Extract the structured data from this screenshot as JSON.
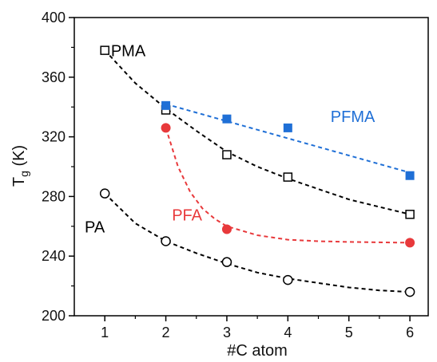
{
  "chart_data": {
    "type": "scatter",
    "xlabel": "#C atom",
    "ylabel_main": "T",
    "ylabel_sub": "g",
    "ylabel_unit": " (K)",
    "xlim": [
      0.5,
      6.3
    ],
    "ylim": [
      200,
      400
    ],
    "xticks": [
      1,
      2,
      3,
      4,
      5,
      6
    ],
    "yticks": [
      200,
      240,
      280,
      320,
      360,
      400
    ],
    "grid": false,
    "series": [
      {
        "name": "PMA",
        "marker": "open-square",
        "color": "#000000",
        "x": [
          1,
          2,
          3,
          4,
          6
        ],
        "y": [
          378,
          338,
          308,
          293,
          268
        ],
        "fit": [
          [
            1,
            378
          ],
          [
            1.5,
            356
          ],
          [
            2,
            339
          ],
          [
            2.5,
            324
          ],
          [
            3,
            310
          ],
          [
            3.5,
            300
          ],
          [
            4,
            292
          ],
          [
            4.5,
            285
          ],
          [
            5,
            278
          ],
          [
            5.5,
            273
          ],
          [
            6,
            268
          ]
        ]
      },
      {
        "name": "PFMA",
        "marker": "filled-square",
        "color": "#1f6fd6",
        "x": [
          2,
          3,
          4,
          6
        ],
        "y": [
          341,
          332,
          326,
          294
        ],
        "fit": [
          [
            2,
            342
          ],
          [
            6,
            296
          ]
        ]
      },
      {
        "name": "PFA",
        "marker": "filled-circle",
        "color": "#e8393b",
        "x": [
          2,
          3,
          6
        ],
        "y": [
          326,
          258,
          249
        ],
        "fit": [
          [
            2,
            326
          ],
          [
            2.2,
            300
          ],
          [
            2.4,
            283
          ],
          [
            2.6,
            272
          ],
          [
            2.8,
            265
          ],
          [
            3,
            260
          ],
          [
            3.5,
            254
          ],
          [
            4,
            251
          ],
          [
            4.5,
            250
          ],
          [
            5,
            249.5
          ],
          [
            6,
            249
          ]
        ]
      },
      {
        "name": "PA",
        "marker": "open-circle",
        "color": "#000000",
        "x": [
          1,
          2,
          3,
          4,
          6
        ],
        "y": [
          282,
          250,
          236,
          224,
          216
        ],
        "fit": [
          [
            1,
            282
          ],
          [
            1.5,
            262
          ],
          [
            2,
            250
          ],
          [
            2.5,
            242
          ],
          [
            3,
            235
          ],
          [
            3.5,
            229
          ],
          [
            4,
            225
          ],
          [
            4.5,
            222
          ],
          [
            5,
            219
          ],
          [
            5.5,
            217
          ],
          [
            6,
            216
          ]
        ]
      }
    ],
    "annotations": [
      {
        "text": "PMA",
        "x": 1.1,
        "y": 374,
        "color": "#000000"
      },
      {
        "text": "PFMA",
        "x": 4.7,
        "y": 330,
        "color": "#1f6fd6"
      },
      {
        "text": "PFA",
        "x": 2.1,
        "y": 264,
        "color": "#e8393b"
      },
      {
        "text": "PA",
        "x": 0.67,
        "y": 256,
        "color": "#000000"
      }
    ]
  }
}
